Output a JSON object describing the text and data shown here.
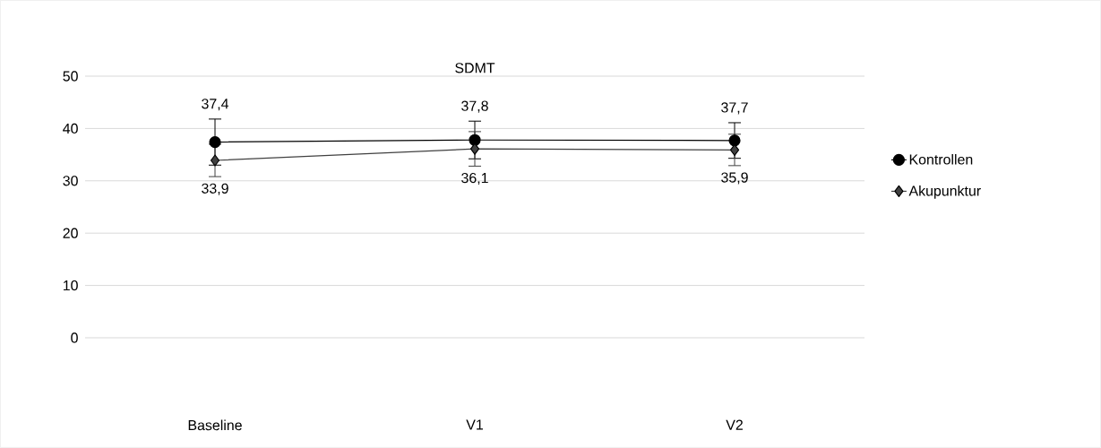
{
  "chart_data": {
    "type": "line",
    "title": "SDMT",
    "categories": [
      "Baseline",
      "V1",
      "V2"
    ],
    "series": [
      {
        "name": "Kontrollen",
        "color": "#000000",
        "marker": "circle",
        "values": [
          37.4,
          37.8,
          37.7
        ],
        "errors": [
          4.4,
          3.6,
          3.4
        ],
        "value_labels": [
          "37,4",
          "37,8",
          "37,7"
        ]
      },
      {
        "name": "Akupunktur",
        "color": "#404040",
        "marker": "diamond",
        "values": [
          33.9,
          36.1,
          35.9
        ],
        "errors": [
          3.1,
          3.3,
          3.0
        ],
        "value_labels": [
          "33,9",
          "36,1",
          "35,9"
        ]
      }
    ],
    "ylim": [
      0,
      50
    ],
    "yticks": [
      0,
      10,
      20,
      30,
      40,
      50
    ],
    "grid": "y",
    "legend": "right",
    "line_style": "solid"
  }
}
